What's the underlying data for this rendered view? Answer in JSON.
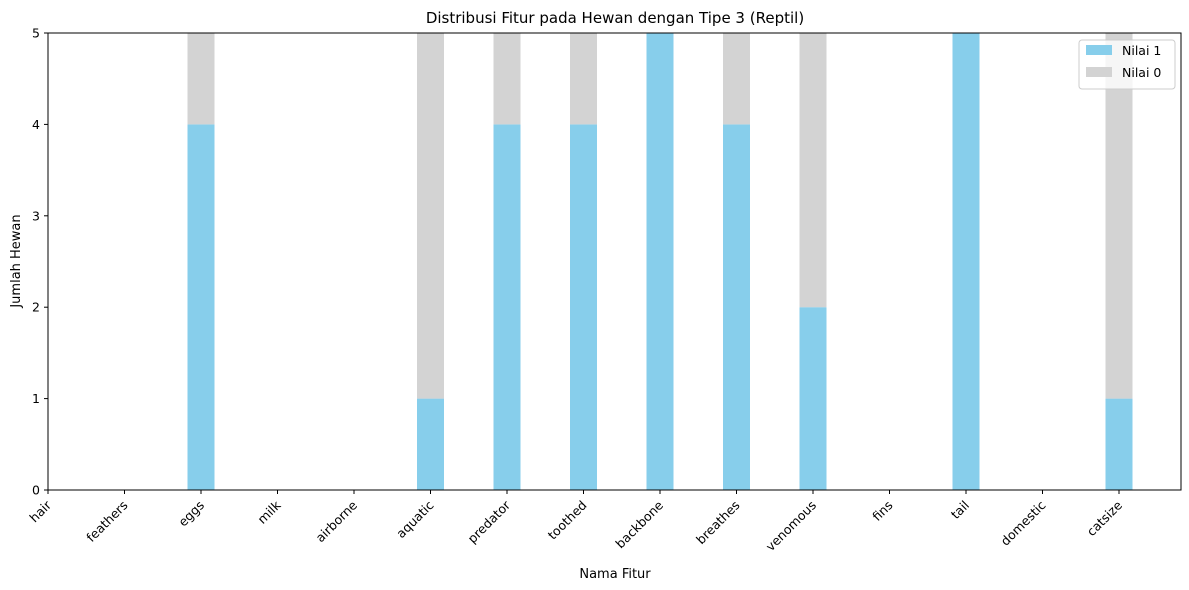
{
  "chart_data": {
    "type": "bar",
    "stacked": true,
    "title": "Distribusi Fitur pada Hewan dengan Tipe 3 (Reptil)",
    "xlabel": "Nama Fitur",
    "ylabel": "Jumlah Hewan",
    "ylim": [
      0,
      5
    ],
    "yticks": [
      "0",
      "1",
      "2",
      "3",
      "4",
      "5"
    ],
    "categories": [
      "hair",
      "feathers",
      "eggs",
      "milk",
      "airborne",
      "aquatic",
      "predator",
      "toothed",
      "backbone",
      "breathes",
      "venomous",
      "fins",
      "tail",
      "domestic",
      "catsize"
    ],
    "series": [
      {
        "name": "Nilai 1",
        "color": "#87ceeb",
        "values": [
          0,
          0,
          4,
          0,
          0,
          1,
          4,
          4,
          5,
          4,
          2,
          0,
          5,
          0,
          1
        ]
      },
      {
        "name": "Nilai 0",
        "color": "#d3d3d3",
        "values": [
          0,
          0,
          1,
          0,
          0,
          4,
          1,
          1,
          0,
          1,
          3,
          0,
          0,
          0,
          4
        ]
      }
    ],
    "legend_position": "top-right",
    "grid": false
  }
}
